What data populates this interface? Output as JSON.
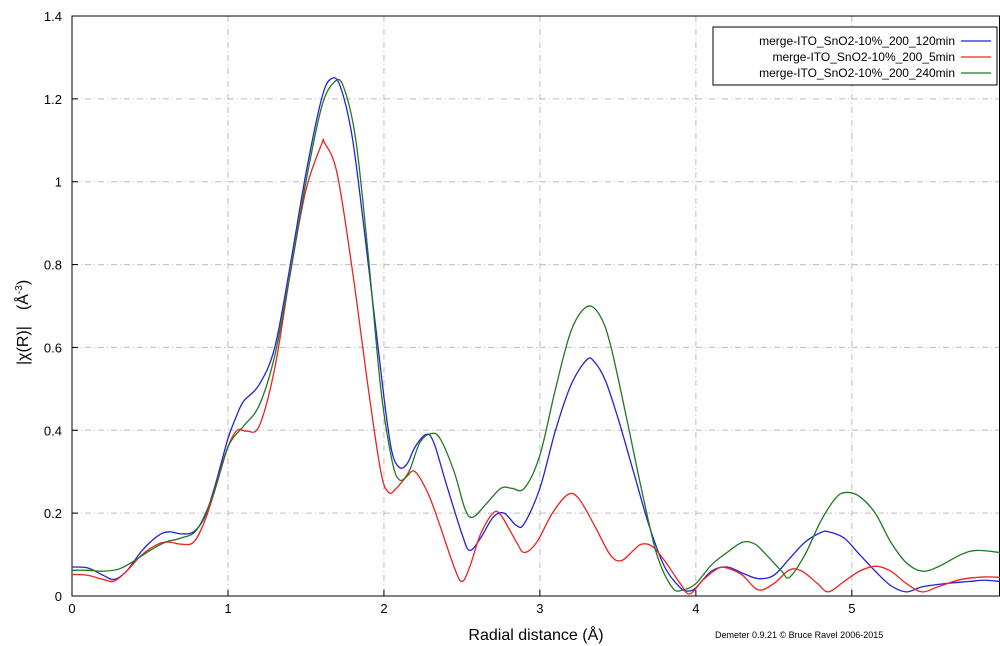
{
  "chart_data": {
    "type": "line",
    "xlabel": "Radial distance    (Å)",
    "ylabel_main": "|χ(R)|",
    "ylabel_unit_base": "(Å",
    "ylabel_unit_sup": "-3",
    "ylabel_unit_close": ")",
    "xlim": [
      0,
      5.95
    ],
    "ylim": [
      0,
      1.4
    ],
    "xticks": [
      0,
      1,
      2,
      3,
      4,
      5
    ],
    "xtick_labels": [
      "0",
      "1",
      "2",
      "3",
      "4",
      "5"
    ],
    "yticks": [
      0,
      0.2,
      0.4,
      0.6,
      0.8,
      1.0,
      1.2,
      1.4
    ],
    "ytick_labels": [
      "0",
      "0.2",
      "0.4",
      "0.6",
      "0.8",
      "1",
      "1.2",
      "1.4"
    ],
    "grid": true,
    "legend_position": "top-right",
    "credit": "Demeter 0.9.21 © Bruce Ravel 2006-2015",
    "series": [
      {
        "name": "merge-ITO_SnO2-10%_200_120min",
        "color": "#2222dd",
        "points": [
          [
            0,
            0.07
          ],
          [
            0.1,
            0.068
          ],
          [
            0.2,
            0.05
          ],
          [
            0.27,
            0.04
          ],
          [
            0.35,
            0.06
          ],
          [
            0.45,
            0.11
          ],
          [
            0.55,
            0.145
          ],
          [
            0.62,
            0.155
          ],
          [
            0.7,
            0.15
          ],
          [
            0.78,
            0.155
          ],
          [
            0.85,
            0.19
          ],
          [
            0.92,
            0.27
          ],
          [
            1.0,
            0.38
          ],
          [
            1.05,
            0.43
          ],
          [
            1.1,
            0.47
          ],
          [
            1.2,
            0.51
          ],
          [
            1.3,
            0.6
          ],
          [
            1.4,
            0.8
          ],
          [
            1.5,
            1.02
          ],
          [
            1.6,
            1.2
          ],
          [
            1.66,
            1.248
          ],
          [
            1.72,
            1.23
          ],
          [
            1.8,
            1.1
          ],
          [
            1.9,
            0.8
          ],
          [
            2.0,
            0.48
          ],
          [
            2.05,
            0.35
          ],
          [
            2.1,
            0.31
          ],
          [
            2.15,
            0.32
          ],
          [
            2.2,
            0.36
          ],
          [
            2.27,
            0.39
          ],
          [
            2.32,
            0.37
          ],
          [
            2.4,
            0.27
          ],
          [
            2.5,
            0.15
          ],
          [
            2.55,
            0.11
          ],
          [
            2.62,
            0.14
          ],
          [
            2.7,
            0.19
          ],
          [
            2.77,
            0.2
          ],
          [
            2.85,
            0.17
          ],
          [
            2.9,
            0.175
          ],
          [
            3.0,
            0.26
          ],
          [
            3.1,
            0.4
          ],
          [
            3.2,
            0.51
          ],
          [
            3.3,
            0.57
          ],
          [
            3.35,
            0.565
          ],
          [
            3.42,
            0.52
          ],
          [
            3.5,
            0.43
          ],
          [
            3.6,
            0.3
          ],
          [
            3.7,
            0.17
          ],
          [
            3.8,
            0.07
          ],
          [
            3.9,
            0.02
          ],
          [
            3.95,
            0.012
          ],
          [
            4.0,
            0.02
          ],
          [
            4.1,
            0.06
          ],
          [
            4.2,
            0.07
          ],
          [
            4.3,
            0.055
          ],
          [
            4.4,
            0.042
          ],
          [
            4.5,
            0.05
          ],
          [
            4.6,
            0.09
          ],
          [
            4.7,
            0.13
          ],
          [
            4.8,
            0.153
          ],
          [
            4.85,
            0.155
          ],
          [
            4.95,
            0.14
          ],
          [
            5.05,
            0.1
          ],
          [
            5.15,
            0.06
          ],
          [
            5.25,
            0.025
          ],
          [
            5.35,
            0.01
          ],
          [
            5.45,
            0.022
          ],
          [
            5.6,
            0.03
          ],
          [
            5.75,
            0.035
          ],
          [
            5.85,
            0.038
          ],
          [
            5.95,
            0.035
          ]
        ]
      },
      {
        "name": "merge-ITO_SnO2-10%_200_5min",
        "color": "#ee2222",
        "points": [
          [
            0,
            0.052
          ],
          [
            0.1,
            0.05
          ],
          [
            0.2,
            0.04
          ],
          [
            0.27,
            0.036
          ],
          [
            0.35,
            0.06
          ],
          [
            0.45,
            0.1
          ],
          [
            0.55,
            0.125
          ],
          [
            0.62,
            0.13
          ],
          [
            0.7,
            0.125
          ],
          [
            0.78,
            0.13
          ],
          [
            0.85,
            0.18
          ],
          [
            0.92,
            0.26
          ],
          [
            1.0,
            0.36
          ],
          [
            1.06,
            0.4
          ],
          [
            1.12,
            0.398
          ],
          [
            1.2,
            0.41
          ],
          [
            1.3,
            0.55
          ],
          [
            1.4,
            0.78
          ],
          [
            1.5,
            0.98
          ],
          [
            1.6,
            1.09
          ],
          [
            1.62,
            1.093
          ],
          [
            1.7,
            1.02
          ],
          [
            1.8,
            0.78
          ],
          [
            1.9,
            0.5
          ],
          [
            1.98,
            0.3
          ],
          [
            2.03,
            0.25
          ],
          [
            2.08,
            0.26
          ],
          [
            2.15,
            0.29
          ],
          [
            2.2,
            0.3
          ],
          [
            2.28,
            0.25
          ],
          [
            2.35,
            0.18
          ],
          [
            2.45,
            0.07
          ],
          [
            2.5,
            0.035
          ],
          [
            2.55,
            0.07
          ],
          [
            2.62,
            0.15
          ],
          [
            2.7,
            0.2
          ],
          [
            2.75,
            0.195
          ],
          [
            2.85,
            0.13
          ],
          [
            2.9,
            0.105
          ],
          [
            2.98,
            0.13
          ],
          [
            3.08,
            0.2
          ],
          [
            3.18,
            0.245
          ],
          [
            3.25,
            0.235
          ],
          [
            3.35,
            0.17
          ],
          [
            3.45,
            0.1
          ],
          [
            3.52,
            0.085
          ],
          [
            3.6,
            0.11
          ],
          [
            3.65,
            0.125
          ],
          [
            3.72,
            0.12
          ],
          [
            3.8,
            0.085
          ],
          [
            3.9,
            0.03
          ],
          [
            3.96,
            0.005
          ],
          [
            4.05,
            0.04
          ],
          [
            4.15,
            0.068
          ],
          [
            4.22,
            0.065
          ],
          [
            4.3,
            0.05
          ],
          [
            4.4,
            0.015
          ],
          [
            4.5,
            0.03
          ],
          [
            4.6,
            0.063
          ],
          [
            4.68,
            0.06
          ],
          [
            4.78,
            0.03
          ],
          [
            4.85,
            0.01
          ],
          [
            4.95,
            0.035
          ],
          [
            5.05,
            0.06
          ],
          [
            5.15,
            0.072
          ],
          [
            5.25,
            0.06
          ],
          [
            5.35,
            0.03
          ],
          [
            5.45,
            0.01
          ],
          [
            5.55,
            0.022
          ],
          [
            5.7,
            0.04
          ],
          [
            5.85,
            0.046
          ],
          [
            5.95,
            0.045
          ]
        ]
      },
      {
        "name": "merge-ITO_SnO2-10%_200_240min",
        "color": "#227722",
        "points": [
          [
            0,
            0.062
          ],
          [
            0.1,
            0.062
          ],
          [
            0.2,
            0.06
          ],
          [
            0.3,
            0.065
          ],
          [
            0.4,
            0.085
          ],
          [
            0.5,
            0.11
          ],
          [
            0.6,
            0.13
          ],
          [
            0.7,
            0.14
          ],
          [
            0.8,
            0.16
          ],
          [
            0.9,
            0.24
          ],
          [
            1.0,
            0.36
          ],
          [
            1.1,
            0.41
          ],
          [
            1.2,
            0.46
          ],
          [
            1.3,
            0.58
          ],
          [
            1.4,
            0.78
          ],
          [
            1.5,
            1.0
          ],
          [
            1.6,
            1.18
          ],
          [
            1.68,
            1.24
          ],
          [
            1.74,
            1.23
          ],
          [
            1.82,
            1.1
          ],
          [
            1.9,
            0.82
          ],
          [
            1.98,
            0.5
          ],
          [
            2.05,
            0.33
          ],
          [
            2.1,
            0.28
          ],
          [
            2.16,
            0.3
          ],
          [
            2.23,
            0.37
          ],
          [
            2.3,
            0.392
          ],
          [
            2.36,
            0.38
          ],
          [
            2.45,
            0.3
          ],
          [
            2.52,
            0.21
          ],
          [
            2.57,
            0.19
          ],
          [
            2.65,
            0.22
          ],
          [
            2.75,
            0.26
          ],
          [
            2.82,
            0.26
          ],
          [
            2.9,
            0.26
          ],
          [
            3.0,
            0.34
          ],
          [
            3.1,
            0.5
          ],
          [
            3.2,
            0.64
          ],
          [
            3.3,
            0.698
          ],
          [
            3.38,
            0.68
          ],
          [
            3.45,
            0.61
          ],
          [
            3.55,
            0.44
          ],
          [
            3.65,
            0.26
          ],
          [
            3.75,
            0.1
          ],
          [
            3.85,
            0.02
          ],
          [
            3.92,
            0.015
          ],
          [
            4.0,
            0.03
          ],
          [
            4.1,
            0.075
          ],
          [
            4.2,
            0.105
          ],
          [
            4.3,
            0.13
          ],
          [
            4.38,
            0.125
          ],
          [
            4.45,
            0.1
          ],
          [
            4.55,
            0.06
          ],
          [
            4.6,
            0.045
          ],
          [
            4.7,
            0.1
          ],
          [
            4.8,
            0.18
          ],
          [
            4.9,
            0.238
          ],
          [
            4.97,
            0.25
          ],
          [
            5.05,
            0.24
          ],
          [
            5.15,
            0.2
          ],
          [
            5.25,
            0.13
          ],
          [
            5.35,
            0.08
          ],
          [
            5.45,
            0.06
          ],
          [
            5.55,
            0.07
          ],
          [
            5.7,
            0.1
          ],
          [
            5.8,
            0.11
          ],
          [
            5.95,
            0.105
          ]
        ]
      }
    ]
  }
}
